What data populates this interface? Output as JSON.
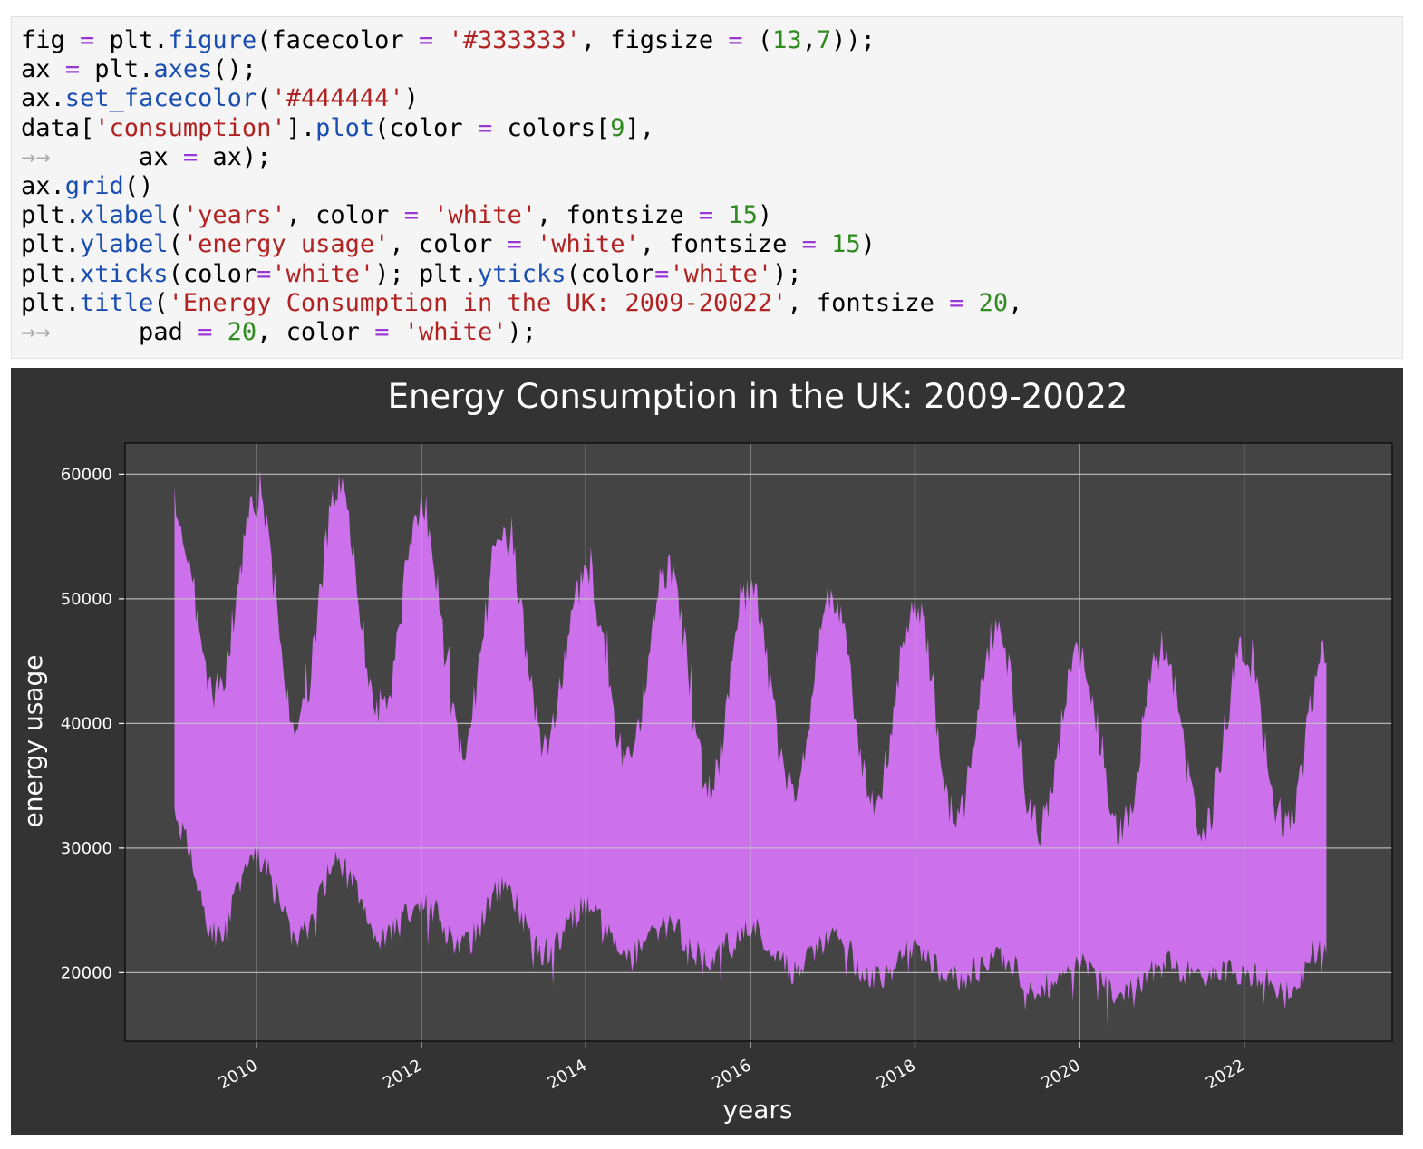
{
  "code_cell": {
    "lines": [
      [
        {
          "t": "fig "
        },
        {
          "t": "=",
          "c": "op"
        },
        {
          "t": " plt."
        },
        {
          "t": "figure",
          "c": "fn"
        },
        {
          "t": "(facecolor "
        },
        {
          "t": "=",
          "c": "op"
        },
        {
          "t": " "
        },
        {
          "t": "'#333333'",
          "c": "str"
        },
        {
          "t": ", figsize "
        },
        {
          "t": "=",
          "c": "op"
        },
        {
          "t": " ("
        },
        {
          "t": "13",
          "c": "num"
        },
        {
          "t": ","
        },
        {
          "t": "7",
          "c": "num"
        },
        {
          "t": "));"
        }
      ],
      [
        {
          "t": "ax "
        },
        {
          "t": "=",
          "c": "op"
        },
        {
          "t": " plt."
        },
        {
          "t": "axes",
          "c": "fn"
        },
        {
          "t": "();"
        }
      ],
      [
        {
          "t": "ax."
        },
        {
          "t": "set_facecolor",
          "c": "fn"
        },
        {
          "t": "("
        },
        {
          "t": "'#444444'",
          "c": "str"
        },
        {
          "t": ")"
        }
      ],
      [
        {
          "t": "data["
        },
        {
          "t": "'consumption'",
          "c": "str"
        },
        {
          "t": "]."
        },
        {
          "t": "plot",
          "c": "fn"
        },
        {
          "t": "(color "
        },
        {
          "t": "=",
          "c": "op"
        },
        {
          "t": " colors["
        },
        {
          "t": "9",
          "c": "num"
        },
        {
          "t": "],"
        }
      ],
      [
        {
          "t": "→→ ",
          "c": "cont"
        },
        {
          "t": "     ax "
        },
        {
          "t": "=",
          "c": "op"
        },
        {
          "t": " ax);"
        }
      ],
      [
        {
          "t": "ax."
        },
        {
          "t": "grid",
          "c": "fn"
        },
        {
          "t": "()"
        }
      ],
      [
        {
          "t": "plt."
        },
        {
          "t": "xlabel",
          "c": "fn"
        },
        {
          "t": "("
        },
        {
          "t": "'years'",
          "c": "str"
        },
        {
          "t": ", color "
        },
        {
          "t": "=",
          "c": "op"
        },
        {
          "t": " "
        },
        {
          "t": "'white'",
          "c": "str"
        },
        {
          "t": ", fontsize "
        },
        {
          "t": "=",
          "c": "op"
        },
        {
          "t": " "
        },
        {
          "t": "15",
          "c": "num"
        },
        {
          "t": ")"
        }
      ],
      [
        {
          "t": "plt."
        },
        {
          "t": "ylabel",
          "c": "fn"
        },
        {
          "t": "("
        },
        {
          "t": "'energy usage'",
          "c": "str"
        },
        {
          "t": ", color "
        },
        {
          "t": "=",
          "c": "op"
        },
        {
          "t": " "
        },
        {
          "t": "'white'",
          "c": "str"
        },
        {
          "t": ", fontsize "
        },
        {
          "t": "=",
          "c": "op"
        },
        {
          "t": " "
        },
        {
          "t": "15",
          "c": "num"
        },
        {
          "t": ")"
        }
      ],
      [
        {
          "t": "plt."
        },
        {
          "t": "xticks",
          "c": "fn"
        },
        {
          "t": "(color"
        },
        {
          "t": "=",
          "c": "op"
        },
        {
          "t": "'white'",
          "c": "str"
        },
        {
          "t": "); plt."
        },
        {
          "t": "yticks",
          "c": "fn"
        },
        {
          "t": "(color"
        },
        {
          "t": "=",
          "c": "op"
        },
        {
          "t": "'white'",
          "c": "str"
        },
        {
          "t": ");"
        }
      ],
      [
        {
          "t": "plt."
        },
        {
          "t": "title",
          "c": "fn"
        },
        {
          "t": "("
        },
        {
          "t": "'Energy Consumption in the UK: 2009-20022'",
          "c": "str"
        },
        {
          "t": ", fontsize "
        },
        {
          "t": "=",
          "c": "op"
        },
        {
          "t": " "
        },
        {
          "t": "20",
          "c": "num"
        },
        {
          "t": ","
        }
      ],
      [
        {
          "t": "→→ ",
          "c": "cont"
        },
        {
          "t": "     pad "
        },
        {
          "t": "=",
          "c": "op"
        },
        {
          "t": " "
        },
        {
          "t": "20",
          "c": "num"
        },
        {
          "t": ", color "
        },
        {
          "t": "=",
          "c": "op"
        },
        {
          "t": " "
        },
        {
          "t": "'white'",
          "c": "str"
        },
        {
          "t": ");"
        }
      ]
    ]
  },
  "chart_data": {
    "type": "area",
    "title": "Energy Consumption in the UK: 2009-20022",
    "xlabel": "years",
    "ylabel": "energy usage",
    "xlim": [
      2008.4,
      2023.8
    ],
    "ylim": [
      14500,
      62500
    ],
    "xticks": [
      2010,
      2012,
      2014,
      2016,
      2018,
      2020,
      2022
    ],
    "yticks": [
      20000,
      30000,
      40000,
      50000,
      60000
    ],
    "grid": true,
    "colors": {
      "figure_bg": "#333333",
      "axes_bg": "#444444",
      "series": "#cc70ec",
      "grid": "#c8c8c8",
      "text": "#ffffff"
    },
    "series": [
      {
        "x": [
          2009.0,
          2009.5,
          2010.0,
          2010.5,
          2011.0,
          2011.5,
          2012.0,
          2012.5,
          2013.0,
          2013.5,
          2014.0,
          2014.5,
          2015.0,
          2015.5,
          2016.0,
          2016.5,
          2017.0,
          2017.5,
          2018.0,
          2018.5,
          2019.0,
          2019.5,
          2020.0,
          2020.5,
          2021.0,
          2021.5,
          2022.0,
          2022.5,
          2023.0
        ],
        "max": [
          59000,
          44000,
          59500,
          41500,
          60200,
          42000,
          59000,
          40000,
          57000,
          40000,
          53500,
          38500,
          54000,
          36500,
          52500,
          36000,
          52000,
          35000,
          51000,
          34000,
          49000,
          33000,
          47000,
          33000,
          47500,
          33000,
          47500,
          33000,
          47500
        ],
        "min": [
          31000,
          22000,
          28000,
          21500,
          27500,
          21500,
          24500,
          21000,
          25500,
          20500,
          24000,
          20000,
          22500,
          19800,
          22500,
          19000,
          21500,
          18500,
          20500,
          18200,
          20000,
          17500,
          19500,
          16800,
          19500,
          18500,
          19000,
          17500,
          21000
        ]
      }
    ]
  }
}
